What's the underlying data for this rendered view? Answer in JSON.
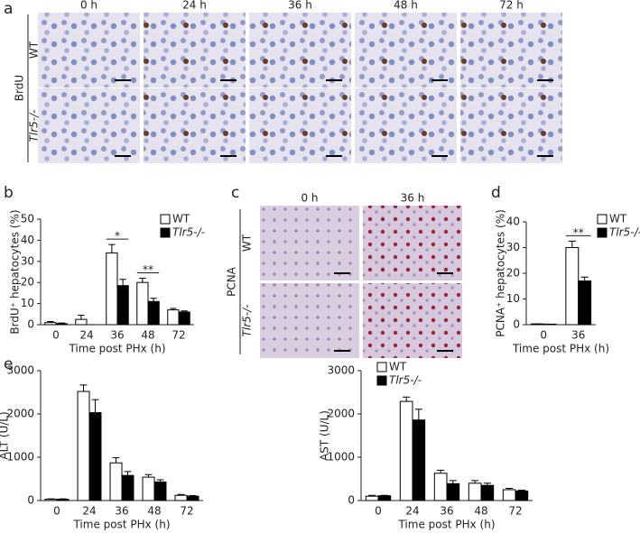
{
  "panel_labels": [
    "a",
    "b",
    "c",
    "d",
    "e"
  ],
  "panel_a": {
    "columns": [
      "0 h",
      "24 h",
      "36 h",
      "48 h",
      "72 h"
    ],
    "row_group": "BrdU",
    "rows": [
      "WT",
      "Tlr5-/-"
    ]
  },
  "panel_c": {
    "columns": [
      "0 h",
      "36 h"
    ],
    "row_group": "PCNA",
    "rows": [
      "WT",
      "Tlr5-/-"
    ]
  },
  "chart_data": [
    {
      "type": "bar",
      "y_label": "BrdU⁺ hepatocytes (%)",
      "x_label": "Time post PHx (h)",
      "categories": [
        "0",
        "24",
        "36",
        "48",
        "72"
      ],
      "series": [
        {
          "name": "WT",
          "color": "#ffffff",
          "values": [
            1,
            2.5,
            34,
            20,
            7
          ],
          "errors": [
            0.5,
            2,
            4,
            2,
            0.7
          ]
        },
        {
          "name": "Tlr5-/-",
          "color": "#000000",
          "values": [
            0.5,
            0,
            18.5,
            11,
            6
          ],
          "errors": [
            0.3,
            0,
            3,
            1.5,
            0.5
          ]
        }
      ],
      "annotations": [
        {
          "text": "*",
          "category": "36"
        },
        {
          "text": "**",
          "category": "48"
        }
      ],
      "ylim": [
        0,
        50
      ],
      "yticks": [
        0,
        10,
        20,
        30,
        40,
        50
      ],
      "legend": true
    },
    {
      "type": "bar",
      "y_label": "PCNA⁺ hepatocytes (%)",
      "x_label": "Time post PHx (h)",
      "categories": [
        "0",
        "36"
      ],
      "series": [
        {
          "name": "WT",
          "color": "#ffffff",
          "values": [
            0.3,
            30
          ],
          "errors": [
            0,
            2.5
          ]
        },
        {
          "name": "Tlr5-/-",
          "color": "#000000",
          "values": [
            0.2,
            17
          ],
          "errors": [
            0,
            1.5
          ]
        }
      ],
      "annotations": [
        {
          "text": "**",
          "category": "36"
        }
      ],
      "ylim": [
        0,
        40
      ],
      "yticks": [
        0,
        10,
        20,
        30,
        40
      ],
      "legend": true
    },
    {
      "type": "bar",
      "y_label": "ALT (U/L)",
      "x_label": "Time post PHx (h)",
      "categories": [
        "0",
        "24",
        "36",
        "48",
        "72"
      ],
      "series": [
        {
          "name": "WT",
          "color": "#ffffff",
          "values": [
            30,
            2520,
            870,
            540,
            120
          ],
          "errors": [
            10,
            150,
            120,
            60,
            20
          ]
        },
        {
          "name": "Tlr5-/-",
          "color": "#000000",
          "values": [
            30,
            2030,
            580,
            430,
            100
          ],
          "errors": [
            10,
            300,
            90,
            50,
            15
          ]
        }
      ],
      "ylim": [
        0,
        3000
      ],
      "yticks": [
        0,
        1000,
        2000,
        3000
      ],
      "legend": false
    },
    {
      "type": "bar",
      "y_label": "AST (U/L)",
      "x_label": "Time post PHx (h)",
      "categories": [
        "0",
        "24",
        "36",
        "48",
        "72"
      ],
      "series": [
        {
          "name": "WT",
          "color": "#ffffff",
          "values": [
            100,
            2290,
            630,
            400,
            250
          ],
          "errors": [
            20,
            100,
            70,
            60,
            30
          ]
        },
        {
          "name": "Tlr5-/-",
          "color": "#000000",
          "values": [
            110,
            1860,
            390,
            350,
            220
          ],
          "errors": [
            10,
            250,
            70,
            50,
            20
          ]
        }
      ],
      "ylim": [
        0,
        3000
      ],
      "yticks": [
        0,
        1000,
        2000,
        3000
      ],
      "legend": true
    }
  ]
}
